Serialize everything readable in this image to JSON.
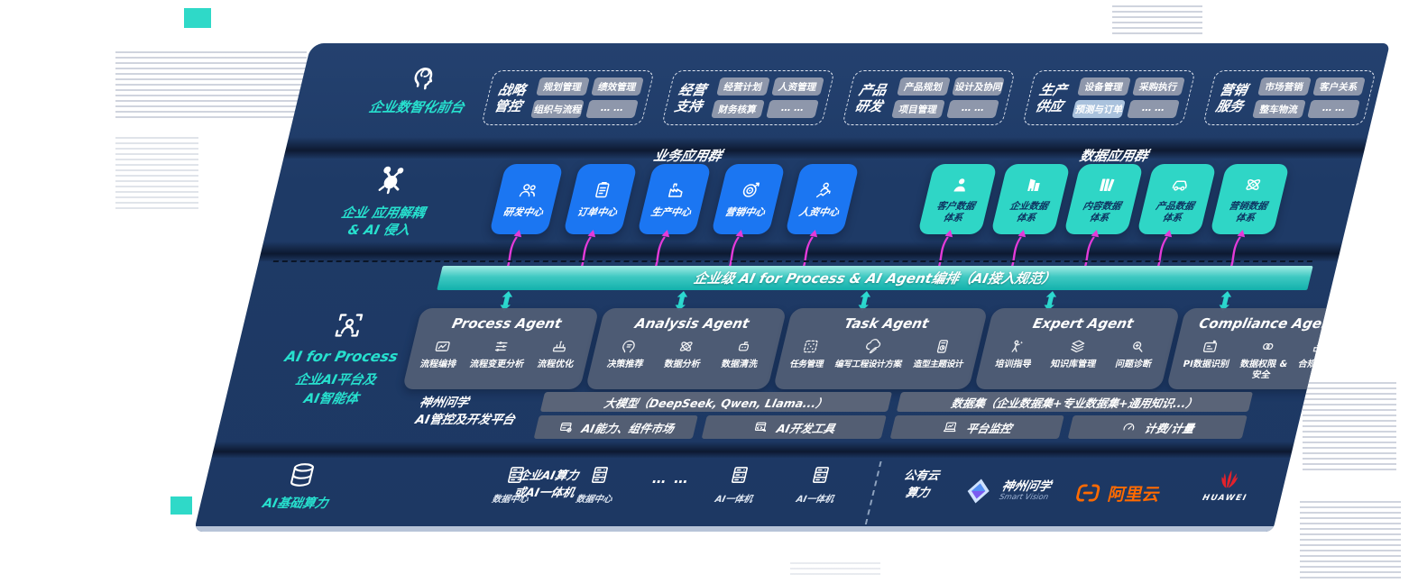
{
  "palette": {
    "navy": "#1e3a66",
    "accent_teal": "#27e0ce",
    "app_blue": "#1b76f2",
    "app_teal": "#2fd6c6",
    "bus_teal": "#12b1ac",
    "magenta": "#e33bd9",
    "slate_pill": "#8e97ab",
    "ali_orange": "#ff6a00",
    "huawei_red": "#e4222b"
  },
  "front_office": {
    "icon": "head-brain-icon",
    "label": "企业数智化前台",
    "groups": [
      {
        "name": "战略管控",
        "items": [
          "规划管理",
          "绩效管理",
          "组织与流程",
          "… …"
        ]
      },
      {
        "name": "经营支持",
        "items": [
          "经营计划",
          "人资管理",
          "财务核算",
          "… …"
        ]
      },
      {
        "name": "产品研发",
        "items": [
          "产品规划",
          "设计及协同",
          "项目管理",
          "… …"
        ]
      },
      {
        "name": "生产供应",
        "items": [
          "设备管理",
          "采购执行",
          "预测与订单",
          "… …"
        ],
        "highlight_item": "预测与订单"
      },
      {
        "name": "营销服务",
        "items": [
          "市场营销",
          "客户关系",
          "整车物流",
          "… …"
        ]
      }
    ]
  },
  "decoupling": {
    "icon": "molecule-icon",
    "label_line1": "企业 应用解耦",
    "label_line2": "& AI 侵入",
    "business_group": {
      "title": "业务应用群",
      "apps": [
        {
          "label": "研发中心",
          "icon": "team-icon"
        },
        {
          "label": "订单中心",
          "icon": "clipboard-icon"
        },
        {
          "label": "生产中心",
          "icon": "factory-icon"
        },
        {
          "label": "营销中心",
          "icon": "target-icon"
        },
        {
          "label": "人资中心",
          "icon": "people-growth-icon"
        }
      ]
    },
    "data_group": {
      "title": "数据应用群",
      "apps": [
        {
          "label": "客户数据\n体系",
          "icon": "user-icon"
        },
        {
          "label": "企业数据\n体系",
          "icon": "building-icon"
        },
        {
          "label": "内容数据\n体系",
          "icon": "books-icon"
        },
        {
          "label": "产品数据\n体系",
          "icon": "car-icon"
        },
        {
          "label": "营销数据\n体系",
          "icon": "atom-icon"
        }
      ]
    }
  },
  "ai_bus": {
    "label": "企业级 AI for Process & AI Agent编排（AI接入规范）"
  },
  "ai_process": {
    "icon": "person-frame-icon",
    "label_line1": "AI for Process",
    "label_line2": "企业AI平台及",
    "label_line3": "AI智能体",
    "agents": [
      {
        "title": "Process Agent",
        "items": [
          {
            "label": "流程编排",
            "icon": "flow-edit-icon"
          },
          {
            "label": "流程变更分析",
            "icon": "change-analysis-icon"
          },
          {
            "label": "流程优化",
            "icon": "flow-optimize-icon"
          }
        ]
      },
      {
        "title": "Analysis Agent",
        "items": [
          {
            "label": "决策推荐",
            "icon": "decision-icon"
          },
          {
            "label": "数据分析",
            "icon": "atom-icon"
          },
          {
            "label": "数据清洗",
            "icon": "data-clean-icon"
          }
        ]
      },
      {
        "title": "Task Agent",
        "items": [
          {
            "label": "任务管理",
            "icon": "task-grid-icon"
          },
          {
            "label": "编写工程设计方案",
            "icon": "cloud-write-icon"
          },
          {
            "label": "造型主题设计",
            "icon": "design-tablet-icon"
          }
        ]
      },
      {
        "title": "Expert Agent",
        "items": [
          {
            "label": "培训指导",
            "icon": "training-icon"
          },
          {
            "label": "知识库管理",
            "icon": "knowledge-layers-icon"
          },
          {
            "label": "问题诊断",
            "icon": "diagnosis-icon"
          }
        ]
      },
      {
        "title": "Compliance Agent",
        "items": [
          {
            "label": "PI数据识别",
            "icon": "pi-card-icon"
          },
          {
            "label": "数据权限 &\n安全",
            "icon": "permission-icon"
          },
          {
            "label": "合规预警",
            "icon": "compliance-alert-icon"
          }
        ]
      }
    ]
  },
  "platform": {
    "name_line1": "神州问学",
    "name_line2": "AI管控及开发平台",
    "model_bar": "大模型（DeepSeek, Qwen, Llama...）",
    "dataset_bar": "数据集（企业数据集+专业数据集+通用知识...）",
    "cells": [
      {
        "label": "AI能力、组件市场",
        "icon": "market-window-icon"
      },
      {
        "label": "AI开发工具",
        "icon": "devtool-icon"
      },
      {
        "label": "平台监控",
        "icon": "monitor-icon"
      },
      {
        "label": "计费/计量",
        "icon": "gauge-icon"
      }
    ]
  },
  "infrastructure": {
    "icon": "database-icon",
    "label": "AI基础算力",
    "compute_line1": "企业AI算力",
    "compute_line2": "或AI一体机",
    "nodes": [
      {
        "label": "数据中心",
        "icon": "server-icon"
      },
      {
        "label": "数据中心",
        "icon": "server-icon"
      },
      {
        "label": "… …"
      },
      {
        "label": "AI一体机",
        "icon": "server-icon"
      },
      {
        "label": "AI一体机",
        "icon": "server-icon"
      }
    ],
    "public_cloud_line1": "公有云",
    "public_cloud_line2": "算力",
    "vendors": [
      {
        "name": "神州问学",
        "sub": "Smart Vision",
        "icon": "smartvision-logo-icon"
      },
      {
        "name": "阿里云",
        "icon": "alicloud-logo-icon"
      },
      {
        "name": "HUAWEI",
        "icon": "huawei-logo-icon"
      }
    ]
  }
}
